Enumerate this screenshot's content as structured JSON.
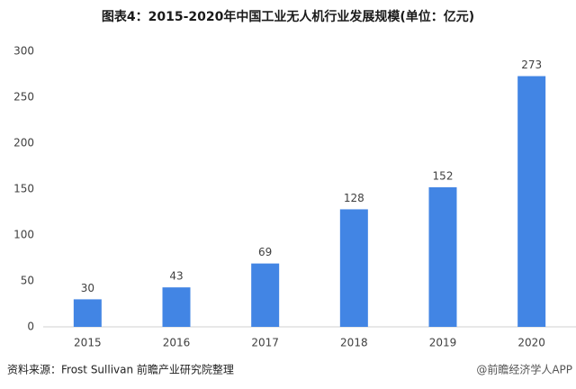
{
  "chart_data": {
    "type": "bar",
    "title": "图表4：2015-2020年中国工业无人机行业发展规模(单位：亿元)",
    "categories": [
      "2015",
      "2016",
      "2017",
      "2018",
      "2019",
      "2020"
    ],
    "values": [
      30,
      43,
      69,
      128,
      152,
      273
    ],
    "color": "#4285e4",
    "ylim": [
      0,
      300
    ],
    "yticks": [
      0,
      50,
      100,
      150,
      200,
      250,
      300
    ],
    "grid": false,
    "source": "资料来源：Frost Sullivan 前瞻产业研究院整理",
    "watermark": "@前瞻经济学人APP"
  }
}
